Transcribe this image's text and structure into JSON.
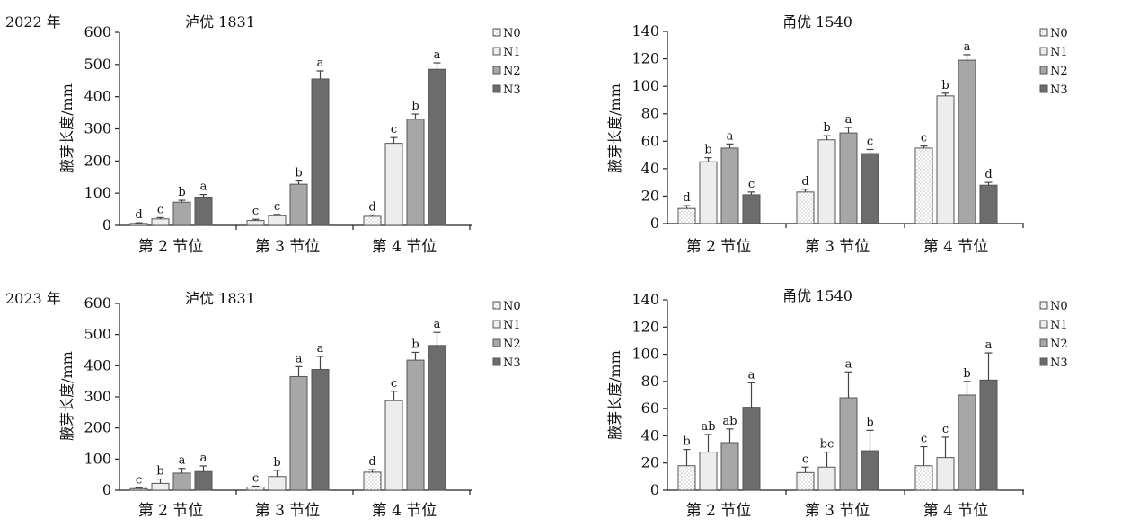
{
  "colors": {
    "N0": "#ffffff",
    "N1": "#ededed",
    "N2": "#a7a7a7",
    "N3": "#6c6c6c"
  },
  "chart_data": [
    {
      "type": "bar",
      "id": "c0",
      "year": "2022 年",
      "title": "泸优 1831",
      "ylabel": "腋芽长度/mm",
      "ylim": [
        0,
        600
      ],
      "yticks": [
        0,
        100,
        200,
        300,
        400,
        500,
        600
      ],
      "categories": [
        "第 2 节位",
        "第 3 节位",
        "第 4 节位"
      ],
      "series": [
        {
          "name": "N0",
          "values": [
            6,
            15,
            28
          ],
          "errors": [
            2,
            4,
            4
          ],
          "labels": [
            "d",
            "c",
            "d"
          ]
        },
        {
          "name": "N1",
          "values": [
            20,
            30,
            255
          ],
          "errors": [
            4,
            4,
            18
          ],
          "labels": [
            "c",
            "c",
            "c"
          ]
        },
        {
          "name": "N2",
          "values": [
            72,
            128,
            330
          ],
          "errors": [
            6,
            10,
            16
          ],
          "labels": [
            "b",
            "b",
            "b"
          ]
        },
        {
          "name": "N3",
          "values": [
            88,
            455,
            485
          ],
          "errors": [
            8,
            25,
            20
          ],
          "labels": [
            "a",
            "a",
            "a"
          ]
        }
      ]
    },
    {
      "type": "bar",
      "id": "c1",
      "year": "",
      "title": "甬优 1540",
      "ylabel": "腋芽长度/mm",
      "ylim": [
        0,
        140
      ],
      "yticks": [
        0,
        20,
        40,
        60,
        80,
        100,
        120,
        140
      ],
      "categories": [
        "第 2 节位",
        "第 3 节位",
        "第 4 节位"
      ],
      "series": [
        {
          "name": "N0",
          "values": [
            11,
            23,
            55
          ],
          "errors": [
            2,
            2,
            1.5
          ],
          "labels": [
            "d",
            "d",
            "c"
          ]
        },
        {
          "name": "N1",
          "values": [
            45,
            61,
            93
          ],
          "errors": [
            3,
            3,
            2
          ],
          "labels": [
            "b",
            "b",
            "b"
          ]
        },
        {
          "name": "N2",
          "values": [
            55,
            66,
            119
          ],
          "errors": [
            3,
            4,
            4
          ],
          "labels": [
            "a",
            "a",
            "a"
          ]
        },
        {
          "name": "N3",
          "values": [
            21,
            51,
            28
          ],
          "errors": [
            2,
            3,
            2
          ],
          "labels": [
            "c",
            "c",
            "d"
          ]
        }
      ]
    },
    {
      "type": "bar",
      "id": "c2",
      "year": "2023 年",
      "title": "泸优 1831",
      "ylabel": "腋芽长度/mm",
      "ylim": [
        0,
        600
      ],
      "yticks": [
        0,
        100,
        200,
        300,
        400,
        500,
        600
      ],
      "categories": [
        "第 2 节位",
        "第 3 节位",
        "第 4 节位"
      ],
      "series": [
        {
          "name": "N0",
          "values": [
            5,
            10,
            58
          ],
          "errors": [
            2,
            3,
            8
          ],
          "labels": [
            "c",
            "c",
            "d"
          ]
        },
        {
          "name": "N1",
          "values": [
            22,
            44,
            288
          ],
          "errors": [
            14,
            20,
            30
          ],
          "labels": [
            "b",
            "b",
            "c"
          ]
        },
        {
          "name": "N2",
          "values": [
            55,
            365,
            418
          ],
          "errors": [
            15,
            32,
            25
          ],
          "labels": [
            "a",
            "a",
            "b"
          ]
        },
        {
          "name": "N3",
          "values": [
            60,
            388,
            465
          ],
          "errors": [
            18,
            42,
            42
          ],
          "labels": [
            "a",
            "a",
            "a"
          ]
        }
      ]
    },
    {
      "type": "bar",
      "id": "c3",
      "year": "",
      "title": "甬优 1540",
      "ylabel": "腋芽长度/mm",
      "ylim": [
        0,
        140
      ],
      "yticks": [
        0,
        20,
        40,
        60,
        80,
        100,
        120,
        140
      ],
      "categories": [
        "第 2 节位",
        "第 3 节位",
        "第 4 节位"
      ],
      "series": [
        {
          "name": "N0",
          "values": [
            18,
            13,
            18
          ],
          "errors": [
            12,
            4,
            14
          ],
          "labels": [
            "b",
            "c",
            "c"
          ]
        },
        {
          "name": "N1",
          "values": [
            28,
            17,
            24
          ],
          "errors": [
            13,
            11,
            15
          ],
          "labels": [
            "ab",
            "bc",
            "c"
          ]
        },
        {
          "name": "N2",
          "values": [
            35,
            68,
            70
          ],
          "errors": [
            10,
            19,
            10
          ],
          "labels": [
            "ab",
            "a",
            "b"
          ]
        },
        {
          "name": "N3",
          "values": [
            61,
            29,
            81
          ],
          "errors": [
            18,
            15,
            20
          ],
          "labels": [
            "a",
            "b",
            "a"
          ]
        }
      ]
    }
  ]
}
